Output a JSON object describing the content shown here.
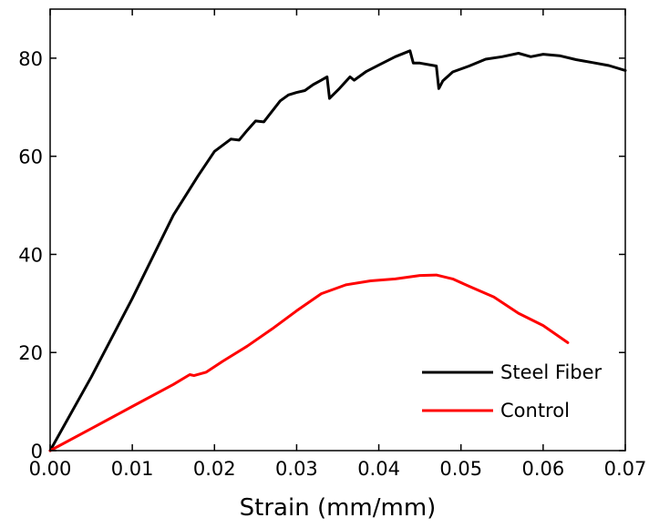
{
  "chart_data": {
    "type": "line",
    "title": "",
    "xlabel": "Strain (mm/mm)",
    "ylabel": "",
    "xlim": [
      0,
      0.07
    ],
    "ylim": [
      0,
      90
    ],
    "grid": false,
    "legend_position": "bottom-right",
    "x_ticks": [
      {
        "value": 0.0,
        "label": "0.00"
      },
      {
        "value": 0.01,
        "label": "0.01"
      },
      {
        "value": 0.02,
        "label": "0.02"
      },
      {
        "value": 0.03,
        "label": "0.03"
      },
      {
        "value": 0.04,
        "label": "0.04"
      },
      {
        "value": 0.05,
        "label": "0.05"
      },
      {
        "value": 0.06,
        "label": "0.06"
      },
      {
        "value": 0.07,
        "label": "0.07"
      }
    ],
    "y_ticks": [
      {
        "value": 0,
        "label": "0"
      },
      {
        "value": 20,
        "label": "20"
      },
      {
        "value": 40,
        "label": "40"
      },
      {
        "value": 60,
        "label": "60"
      },
      {
        "value": 80,
        "label": "80"
      }
    ],
    "series": [
      {
        "name": "Steel Fiber",
        "color": "#000000",
        "x": [
          0,
          0.005,
          0.01,
          0.015,
          0.018,
          0.02,
          0.022,
          0.023,
          0.024,
          0.025,
          0.026,
          0.028,
          0.029,
          0.03,
          0.031,
          0.032,
          0.033,
          0.0337,
          0.034,
          0.0352,
          0.0365,
          0.037,
          0.0385,
          0.04,
          0.042,
          0.0438,
          0.0442,
          0.045,
          0.047,
          0.0473,
          0.0478,
          0.049,
          0.051,
          0.053,
          0.055,
          0.057,
          0.0585,
          0.06,
          0.062,
          0.064,
          0.066,
          0.068,
          0.07
        ],
        "y": [
          0,
          15,
          31,
          48,
          56,
          61,
          63.5,
          63.3,
          65.3,
          67.2,
          67,
          71.3,
          72.5,
          73,
          73.4,
          74.6,
          75.5,
          76.2,
          71.8,
          73.8,
          76.2,
          75.5,
          77.3,
          78.6,
          80.3,
          81.5,
          79,
          79,
          78.4,
          73.8,
          75.4,
          77.2,
          78.4,
          79.8,
          80.3,
          81,
          80.3,
          80.8,
          80.5,
          79.7,
          79.1,
          78.5,
          77.5
        ]
      },
      {
        "name": "Control",
        "color": "#ff0000",
        "x": [
          0,
          0.005,
          0.01,
          0.015,
          0.017,
          0.0175,
          0.019,
          0.021,
          0.024,
          0.027,
          0.03,
          0.033,
          0.036,
          0.039,
          0.042,
          0.045,
          0.047,
          0.049,
          0.051,
          0.054,
          0.057,
          0.06,
          0.063
        ],
        "y": [
          0,
          4.5,
          9,
          13.5,
          15.5,
          15.3,
          16,
          18.2,
          21.3,
          24.8,
          28.5,
          32,
          33.8,
          34.6,
          35,
          35.7,
          35.8,
          35,
          33.5,
          31.3,
          28,
          25.5,
          22
        ]
      }
    ]
  }
}
